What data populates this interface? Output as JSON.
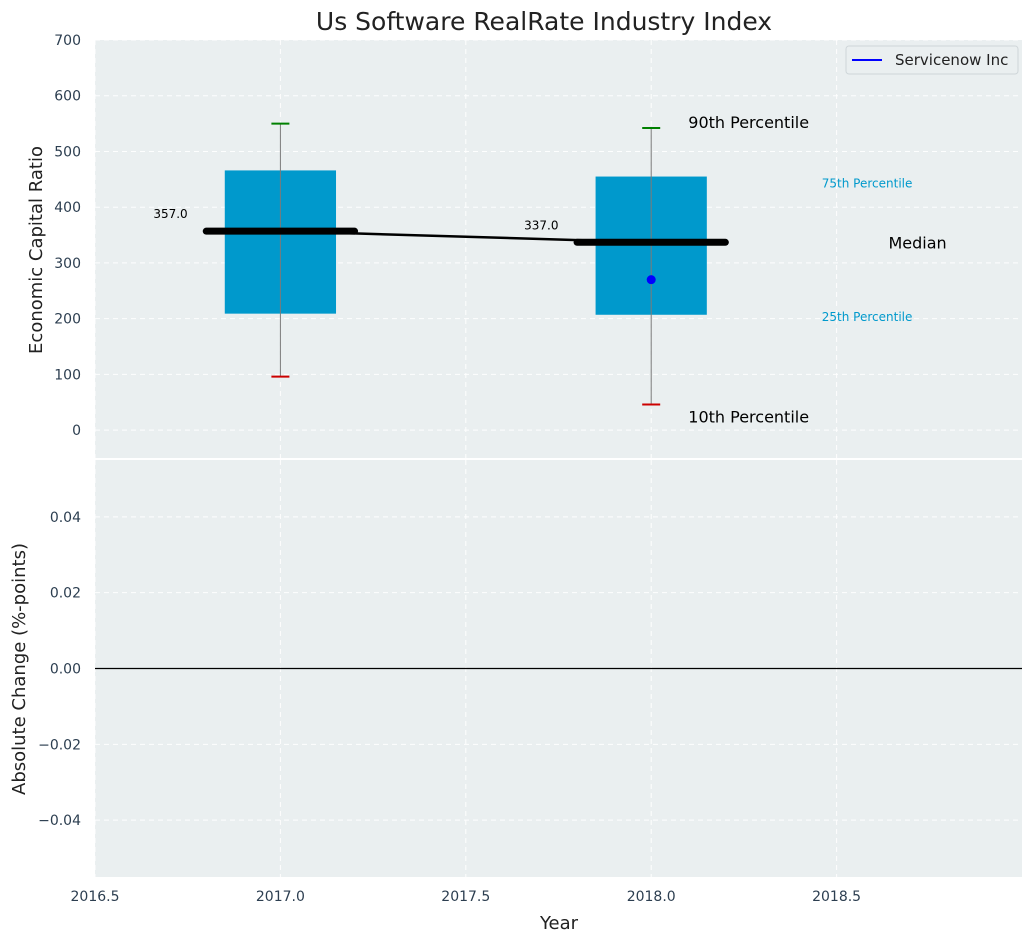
{
  "chart_data": [
    {
      "type": "box",
      "title": "Us Software RealRate Industry Index",
      "xlabel": "",
      "ylabel": "Economic Capital Ratio",
      "ylim": [
        -50,
        700
      ],
      "xlim": [
        2016.5,
        2019.0
      ],
      "grid": true,
      "legend": {
        "position": "top-right",
        "entries": [
          "Servicenow Inc"
        ]
      },
      "yticks": [
        "700",
        "600",
        "500",
        "400",
        "300",
        "200",
        "100",
        "0"
      ],
      "ytick_values": [
        700,
        600,
        500,
        400,
        300,
        200,
        100,
        0
      ],
      "boxes": [
        {
          "x": 2017.0,
          "p10": 96,
          "p25": 209,
          "median": 357,
          "p75": 466,
          "p90": 550,
          "median_label": "357.0"
        },
        {
          "x": 2018.0,
          "p10": 46,
          "p25": 207,
          "median": 337,
          "p75": 455,
          "p90": 542,
          "median_label": "337.0"
        }
      ],
      "median_line": {
        "x": [
          2017.0,
          2018.0
        ],
        "y": [
          357,
          337
        ]
      },
      "company_series": {
        "name": "Servicenow Inc",
        "x": [
          2018.0
        ],
        "y": [
          270
        ]
      },
      "annotations": {
        "p90": "90th Percentile",
        "p75": "75th Percentile",
        "median": "Median",
        "p25": "25th Percentile",
        "p10": "10th Percentile"
      },
      "colors": {
        "box": "#0099cc",
        "median": "#000000",
        "p90_cap": "#008000",
        "p10_cap": "#cc0000",
        "company": "#0000ff",
        "axes_bg": "#eaeff0",
        "percentile_label": "#0099cc"
      }
    },
    {
      "type": "line",
      "xlabel": "Year",
      "ylabel": "Absolute Change (%-points)",
      "ylim": [
        -0.055,
        0.055
      ],
      "xlim": [
        2016.5,
        2019.0
      ],
      "grid": true,
      "yticks": [
        "0.04",
        "0.02",
        "0.00",
        "−0.02",
        "−0.04"
      ],
      "ytick_values": [
        0.04,
        0.02,
        0.0,
        -0.02,
        -0.04
      ],
      "xticks": [
        "2016.5",
        "2017.0",
        "2017.5",
        "2018.0",
        "2018.5"
      ],
      "xtick_values": [
        2016.5,
        2017.0,
        2017.5,
        2018.0,
        2018.5
      ],
      "zero_line": 0.0,
      "series": []
    }
  ]
}
